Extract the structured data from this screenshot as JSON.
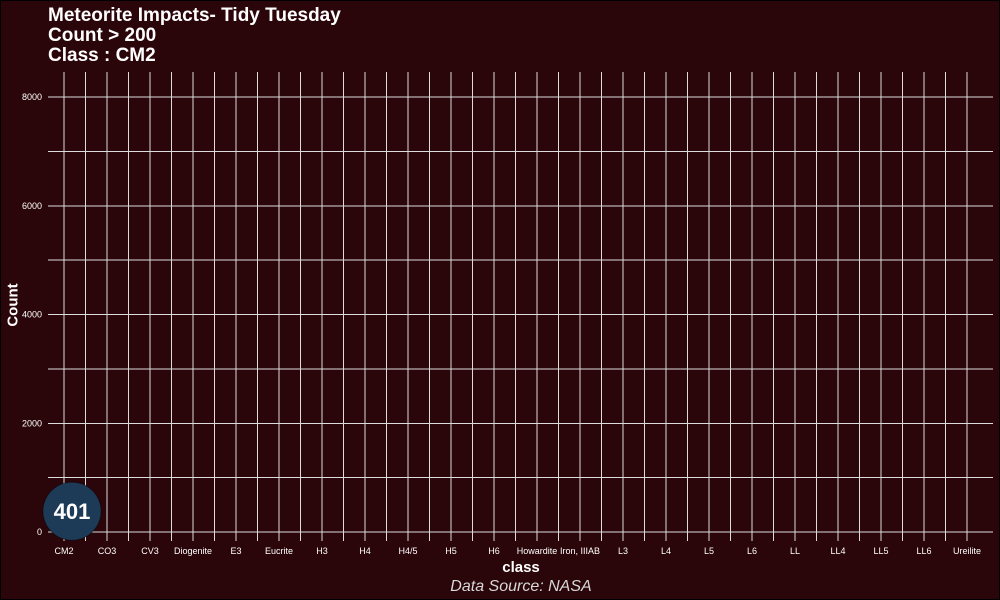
{
  "title": "Meteorite Impacts- Tidy Tuesday",
  "subtitle_lines": [
    "Count > 200",
    "Class : CM2"
  ],
  "caption": "Data Source: NASA",
  "colors": {
    "background": "#2a0509",
    "grid": "#dcdcdc",
    "point_fill": "#1d3a57",
    "text": "#ffffff"
  },
  "chart_data": {
    "type": "scatter",
    "xlabel": "class",
    "ylabel": "Count",
    "categories": [
      "CM2",
      "CO3",
      "CV3",
      "Diogenite",
      "E3",
      "Eucrite",
      "H3",
      "H4",
      "H4/5",
      "H5",
      "H6",
      "Howardite",
      "Iron, IIIAB",
      "L3",
      "L4",
      "L5",
      "L6",
      "LL",
      "LL4",
      "LL5",
      "LL6",
      "Ureilite"
    ],
    "y_ticks": [
      0,
      2000,
      4000,
      6000,
      8000
    ],
    "ylim": [
      0,
      8000
    ],
    "grid": true,
    "legend": "none",
    "points": [
      {
        "x": "CM2",
        "y": 401,
        "label": "401"
      }
    ]
  }
}
